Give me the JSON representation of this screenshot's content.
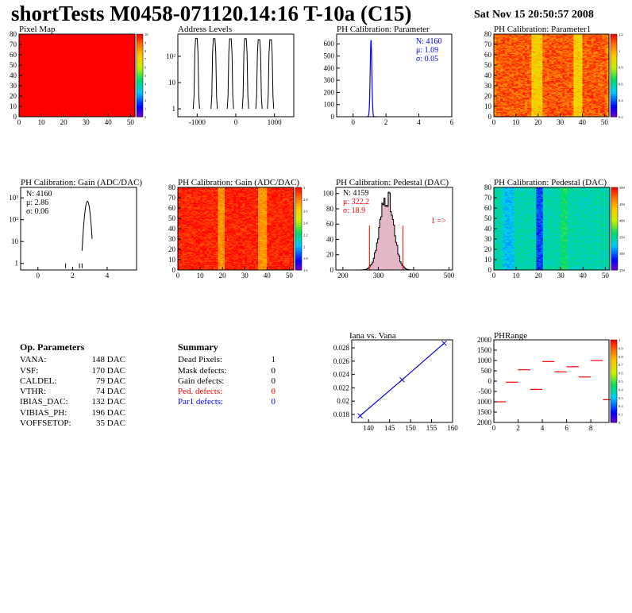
{
  "header": {
    "title": "shortTests M0458-071120.14:16 T-10a (C15)",
    "timestamp": "Sat Nov 15 20:50:57 2008"
  },
  "palette": {
    "red": "#ff0000",
    "blue": "#0000ff",
    "hist_line": "#000000",
    "fit_line": "#0000cc",
    "pedestal_fill": "#b03060"
  },
  "chart_data": [
    {
      "id": "pixel_map",
      "type": "heatmap",
      "title": "Pixel Map",
      "xlim": [
        0,
        52
      ],
      "ylim": [
        0,
        80
      ],
      "x_ticks": [
        "0",
        "10",
        "20",
        "30",
        "40",
        "50"
      ],
      "y_ticks": [
        "0",
        "10",
        "20",
        "30",
        "40",
        "50",
        "60",
        "70",
        "80"
      ],
      "z_ticks": [
        "0",
        "1",
        "2",
        "3",
        "4",
        "5",
        "6",
        "7",
        "8",
        "9",
        "10"
      ],
      "uniform_value": 10
    },
    {
      "id": "address_levels",
      "type": "bar",
      "title": "Address Levels",
      "xlim": [
        -1500,
        1500
      ],
      "log_y": true,
      "x_ticks": [
        "-1000",
        "0",
        "1000"
      ],
      "y_tick_labels": [
        "1",
        "10",
        "10²"
      ],
      "peaks": [
        {
          "x": -1020,
          "count": 480
        },
        {
          "x": -560,
          "count": 470
        },
        {
          "x": -140,
          "count": 460
        },
        {
          "x": 250,
          "count": 470
        },
        {
          "x": 600,
          "count": 430
        },
        {
          "x": 900,
          "count": 430
        }
      ]
    },
    {
      "id": "ph_param",
      "type": "bar",
      "title": "PH Calibration: Parameter",
      "xlim": [
        -1,
        6
      ],
      "ylim": [
        0,
        680
      ],
      "x_ticks": [
        "0",
        "2",
        "4",
        "6"
      ],
      "y_ticks": [
        "0",
        "100",
        "200",
        "300",
        "400",
        "500",
        "600"
      ],
      "stats": [
        "N: 4160",
        "μ: 1.09",
        "σ: 0.05"
      ],
      "peak": {
        "mean": 1.09,
        "sigma": 0.05,
        "height": 640
      }
    },
    {
      "id": "ph_param1_map",
      "type": "heatmap",
      "title": "PH Calibration: Parameter1",
      "xlim": [
        0,
        52
      ],
      "ylim": [
        0,
        80
      ],
      "x_ticks": [
        "0",
        "10",
        "20",
        "30",
        "40",
        "50"
      ],
      "y_ticks": [
        "0",
        "10",
        "20",
        "30",
        "40",
        "50",
        "60",
        "70",
        "80"
      ],
      "z_ticks": [
        "0.2",
        "0.4",
        "0.6",
        "0.8",
        "1",
        "1.2"
      ],
      "z_range": [
        0.2,
        1.2
      ]
    },
    {
      "id": "gain_hist",
      "type": "bar",
      "title": "PH Calibration: Gain (ADC/DAC)",
      "xlim": [
        -1,
        5.7
      ],
      "log_y": true,
      "x_ticks": [
        "0",
        "2",
        "4"
      ],
      "y_tick_labels": [
        "1",
        "10",
        "10²",
        "10³"
      ],
      "stats": [
        "N: 4160",
        "μ: 2.86",
        "σ: 0.06"
      ],
      "peak": {
        "mean": 2.86,
        "sigma": 0.06,
        "height": 700
      }
    },
    {
      "id": "gain_map",
      "type": "heatmap",
      "title": "PH Calibration: Gain (ADC/DAC)",
      "xlim": [
        0,
        52
      ],
      "ylim": [
        0,
        80
      ],
      "x_ticks": [
        "0",
        "10",
        "20",
        "30",
        "40",
        "50"
      ],
      "y_ticks": [
        "0",
        "10",
        "20",
        "30",
        "40",
        "50",
        "60",
        "70",
        "80"
      ],
      "z_ticks": [
        "1.6",
        "1.8",
        "2",
        "2.2",
        "2.4",
        "2.6",
        "2.8",
        "3"
      ],
      "z_range": [
        1.5,
        3.0
      ]
    },
    {
      "id": "pedestal_hist",
      "type": "bar",
      "title": "PH Calibration: Pedestal (DAC)",
      "xlim": [
        180,
        510
      ],
      "ylim": [
        0,
        108
      ],
      "x_ticks": [
        "200",
        "300",
        "400",
        "500"
      ],
      "y_ticks": [
        "0",
        "20",
        "40",
        "60",
        "80",
        "100"
      ],
      "stats": [
        "N: 4159",
        "μ: 322.2",
        "σ: 18.9"
      ],
      "peak": {
        "mean": 322.2,
        "sigma": 18.9,
        "height": 98
      },
      "cut_lines": [
        275,
        370
      ],
      "overflow_label": "1 =>"
    },
    {
      "id": "pedestal_map",
      "type": "heatmap",
      "title": "PH Calibration: Pedestal (DAC)",
      "xlim": [
        0,
        52
      ],
      "ylim": [
        0,
        80
      ],
      "x_ticks": [
        "0",
        "10",
        "20",
        "30",
        "40",
        "50"
      ],
      "y_ticks": [
        "0",
        "10",
        "20",
        "30",
        "40",
        "50",
        "60",
        "70",
        "80"
      ],
      "z_ticks": [
        "250",
        "300",
        "350",
        "400",
        "450",
        "500"
      ],
      "z_range": [
        230,
        520
      ]
    },
    {
      "id": "iana_vana",
      "type": "line",
      "title": "Iana vs. Vana",
      "xlim": [
        136,
        160
      ],
      "ylim": [
        0.0168,
        0.0292
      ],
      "x_ticks": [
        "140",
        "145",
        "150",
        "155",
        "160"
      ],
      "y_ticks": [
        "0.018",
        "0.02",
        "0.022",
        "0.024",
        "0.026",
        "0.028"
      ],
      "x": [
        138,
        148,
        158
      ],
      "y": [
        0.0178,
        0.0232,
        0.0287
      ]
    },
    {
      "id": "ph_range",
      "type": "scatter",
      "title": "PHRange",
      "xlim": [
        0,
        9.5
      ],
      "ylim": [
        -2000,
        2000
      ],
      "x_ticks": [
        "0",
        "2",
        "4",
        "6",
        "8"
      ],
      "y_ticks": [
        "2000",
        "1500",
        "1000",
        "500",
        "0",
        "-500",
        "1000",
        "1500",
        "2000"
      ],
      "z_ticks": [
        "0",
        "0.1",
        "0.2",
        "0.3",
        "0.4",
        "0.5",
        "0.6",
        "0.7",
        "0.8",
        "0.9",
        "1"
      ],
      "x": [
        0,
        1,
        2,
        3,
        4,
        5,
        6,
        7,
        8,
        9
      ],
      "y": [
        -1000,
        -50,
        550,
        -400,
        950,
        450,
        700,
        200,
        1000,
        -900
      ]
    }
  ],
  "op_parameters": {
    "heading": "Op. Parameters",
    "rows": [
      {
        "name": "VANA:",
        "value": "148 DAC"
      },
      {
        "name": "VSF:",
        "value": "170 DAC"
      },
      {
        "name": "CALDEL:",
        "value": "79 DAC"
      },
      {
        "name": "VTHR:",
        "value": "74 DAC"
      },
      {
        "name": "IBIAS_DAC:",
        "value": "132 DAC"
      },
      {
        "name": "VIBIAS_PH:",
        "value": "196 DAC"
      },
      {
        "name": "VOFFSETOP:",
        "value": "35 DAC"
      }
    ]
  },
  "summary": {
    "heading": "Summary",
    "rows": [
      {
        "name": "Dead Pixels:",
        "value": "1",
        "color": "#000000"
      },
      {
        "name": "Mask defects:",
        "value": "0",
        "color": "#000000"
      },
      {
        "name": "Gain defects:",
        "value": "0",
        "color": "#000000"
      },
      {
        "name": "Ped. defects:",
        "value": "0",
        "color": "#ff0000"
      },
      {
        "name": "Par1 defects:",
        "value": "0",
        "color": "#0000ff"
      }
    ]
  }
}
